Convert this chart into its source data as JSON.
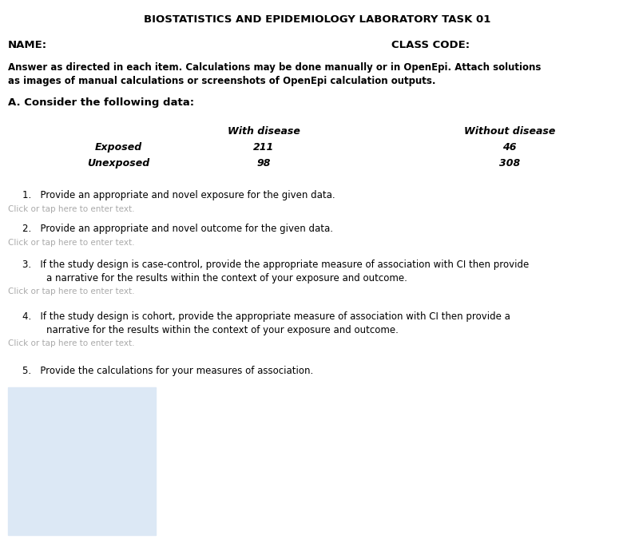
{
  "title": "BIOSTATISTICS AND EPIDEMIOLOGY LABORATORY TASK 01",
  "name_label": "NAME:",
  "class_code_label": "CLASS CODE:",
  "instruction_line1": "Answer as directed in each item. Calculations may be done manually or in OpenEpi. Attach solutions",
  "instruction_line2": "as images of manual calculations or screenshots of OpenEpi calculation outputs.",
  "section_a": "A. Consider the following data:",
  "table_header_col1": "With disease",
  "table_header_col2": "Without disease",
  "table_row1_label": "Exposed",
  "table_row2_label": "Unexposed",
  "table_row1_col1": "211",
  "table_row1_col2": "46",
  "table_row2_col1": "98",
  "table_row2_col2": "308",
  "item1": "1.   Provide an appropriate and novel exposure for the given data.",
  "item2": "2.   Provide an appropriate and novel outcome for the given data.",
  "item3a": "3.   If the study design is case-control, provide the appropriate measure of association with CI then provide",
  "item3b": "        a narrative for the results within the context of your exposure and outcome.",
  "item4a": "4.   If the study design is cohort, provide the appropriate measure of association with CI then provide a",
  "item4b": "        narrative for the results within the context of your exposure and outcome.",
  "item5": "5.   Provide the calculations for your measures of association.",
  "click_text": "Click or tap here to enter text.",
  "bg_color": "#ffffff",
  "text_color": "#000000",
  "click_color": "#aaaaaa",
  "box_color": "#dce8f5",
  "fig_width": 7.95,
  "fig_height": 6.95,
  "dpi": 100
}
